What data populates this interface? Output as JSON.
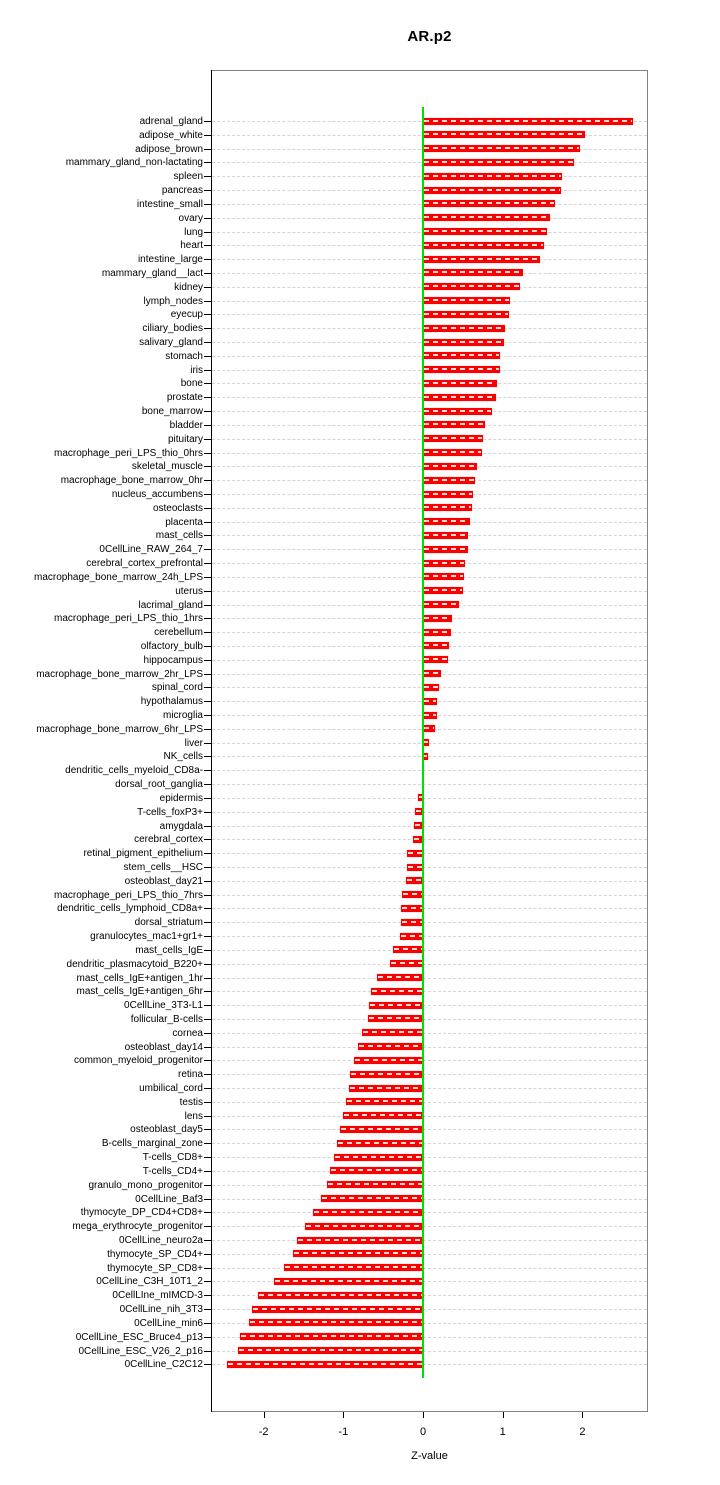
{
  "page": {
    "background": "#ffffff"
  },
  "chart_data": {
    "type": "bar",
    "orientation": "horizontal",
    "title": "AR.p2",
    "xlabel": "Z-value",
    "x_ticks": [
      -2,
      -1,
      0,
      1,
      2
    ],
    "xlim": [
      -2.66,
      2.82
    ],
    "grid": "per-row dashed horizontal lines",
    "legend": "none",
    "bar_color": "#fb0000",
    "zero_line_color": "#00e000",
    "gridline_color": "#d5d5d5",
    "box_color": "#828282",
    "categories": [
      "adrenal_gland",
      "adipose_white",
      "adipose_brown",
      "mammary_gland_non-lactating",
      "spleen",
      "pancreas",
      "intestine_small",
      "ovary",
      "lung",
      "heart",
      "intestine_large",
      "mammary_gland__lact",
      "kidney",
      "lymph_nodes",
      "eyecup",
      "ciliary_bodies",
      "salivary_gland",
      "stomach",
      "iris",
      "bone",
      "prostate",
      "bone_marrow",
      "bladder",
      "pituitary",
      "macrophage_peri_LPS_thio_0hrs",
      "skeletal_muscle",
      "macrophage_bone_marrow_0hr",
      "nucleus_accumbens",
      "osteoclasts",
      "placenta",
      "mast_cells",
      "0CellLine_RAW_264_7",
      "cerebral_cortex_prefrontal",
      "macrophage_bone_marrow_24h_LPS",
      "uterus",
      "lacrimal_gland",
      "macrophage_peri_LPS_thio_1hrs",
      "cerebellum",
      "olfactory_bulb",
      "hippocampus",
      "macrophage_bone_marrow_2hr_LPS",
      "spinal_cord",
      "hypothalamus",
      "microglia",
      "macrophage_bone_marrow_6hr_LPS",
      "liver",
      "NK_cells",
      "dendritic_cells_myeloid_CD8a-",
      "dorsal_root_ganglia",
      "epidermis",
      "T-cells_foxP3+",
      "amygdala",
      "cerebral_cortex",
      "retinal_pigment_epithelium",
      "stem_cells__HSC",
      "osteoblast_day21",
      "macrophage_peri_LPS_thio_7hrs",
      "dendritic_cells_lymphoid_CD8a+",
      "dorsal_striatum",
      "granulocytes_mac1+gr1+",
      "mast_cells_IgE",
      "dendritic_plasmacytoid_B220+",
      "mast_cells_IgE+antigen_1hr",
      "mast_cells_IgE+antigen_6hr",
      "0CellLine_3T3-L1",
      "follicular_B-cells",
      "cornea",
      "osteoblast_day14",
      "common_myeloid_progenitor",
      "retina",
      "umbilical_cord",
      "testis",
      "lens",
      "osteoblast_day5",
      "B-cells_marginal_zone",
      "T-cells_CD8+",
      "T-cells_CD4+",
      "granulo_mono_progenitor",
      "0CellLine_Baf3",
      "thymocyte_DP_CD4+CD8+",
      "mega_erythrocyte_progenitor",
      "0CellLine_neuro2a",
      "thymocyte_SP_CD4+",
      "thymocyte_SP_CD8+",
      "0CellLine_C3H_10T1_2",
      "0CellLIne_mIMCD-3",
      "0CellLine_nih_3T3",
      "0CellLine_min6",
      "0CellLine_ESC_Bruce4_p13",
      "0CellLine_ESC_V26_2_p16",
      "0CellLine_C2C12"
    ],
    "values": [
      2.63,
      2.03,
      1.97,
      1.9,
      1.74,
      1.73,
      1.66,
      1.59,
      1.56,
      1.52,
      1.47,
      1.26,
      1.22,
      1.09,
      1.08,
      1.03,
      1.02,
      0.97,
      0.96,
      0.93,
      0.91,
      0.86,
      0.78,
      0.75,
      0.74,
      0.68,
      0.65,
      0.63,
      0.61,
      0.59,
      0.57,
      0.56,
      0.53,
      0.52,
      0.5,
      0.45,
      0.37,
      0.35,
      0.33,
      0.31,
      0.22,
      0.2,
      0.18,
      0.17,
      0.15,
      0.07,
      0.06,
      0.01,
      -0.01,
      -0.06,
      -0.1,
      -0.11,
      -0.12,
      -0.2,
      -0.2,
      -0.21,
      -0.26,
      -0.27,
      -0.28,
      -0.29,
      -0.38,
      -0.42,
      -0.58,
      -0.65,
      -0.68,
      -0.69,
      -0.77,
      -0.81,
      -0.87,
      -0.91,
      -0.93,
      -0.96,
      -1.01,
      -1.04,
      -1.08,
      -1.12,
      -1.17,
      -1.2,
      -1.28,
      -1.38,
      -1.48,
      -1.58,
      -1.63,
      -1.74,
      -1.87,
      -2.07,
      -2.15,
      -2.18,
      -2.29,
      -2.32,
      -2.46
    ]
  }
}
